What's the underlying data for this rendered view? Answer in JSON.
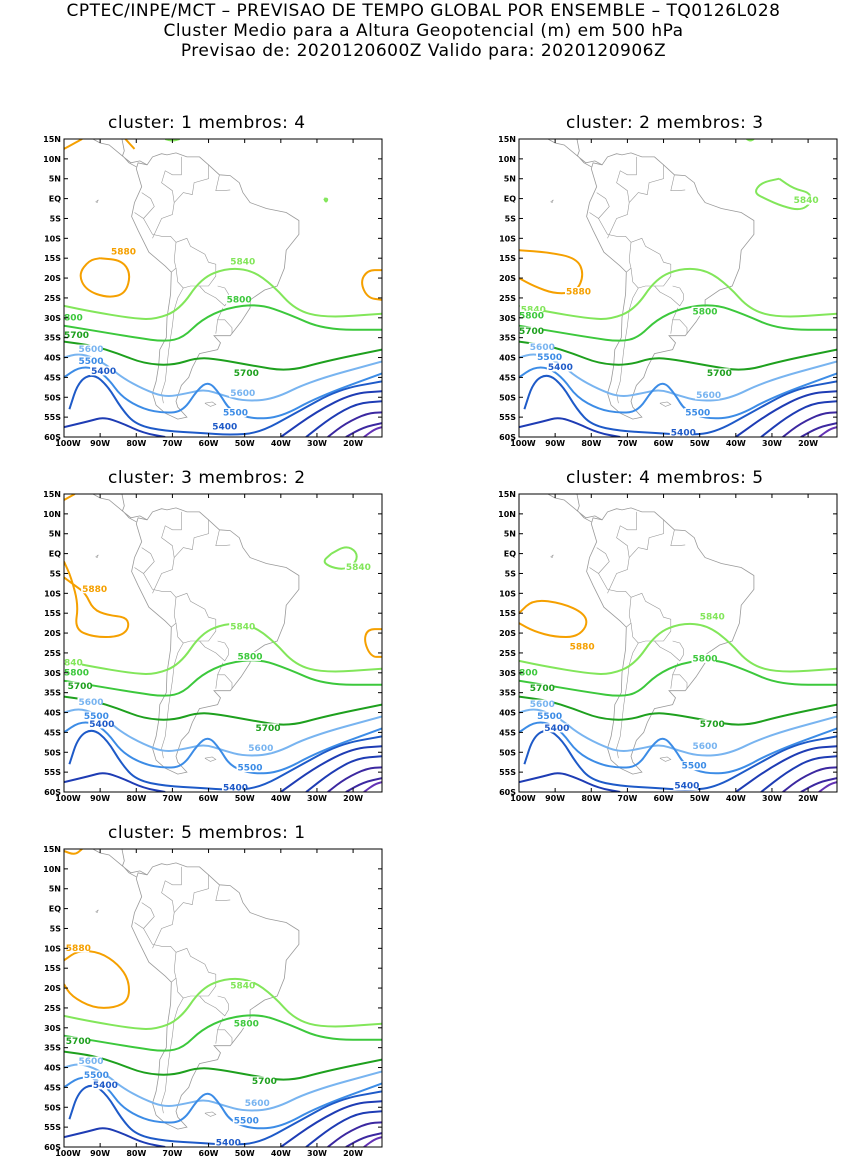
{
  "header": {
    "line1": "CPTEC/INPE/MCT – PREVISAO DE TEMPO GLOBAL POR ENSEMBLE – TQ0126L028",
    "line2": "Cluster Medio para a Altura Geopotencial (m) em 500 hPa",
    "line3": "Previsao de: 2020120600Z    Valido para: 2020120906Z"
  },
  "axes": {
    "lat_labels": [
      "15N",
      "10N",
      "5N",
      "EQ",
      "5S",
      "10S",
      "15S",
      "20S",
      "25S",
      "30S",
      "35S",
      "40S",
      "45S",
      "50S",
      "55S",
      "60S"
    ],
    "lon_labels": [
      "100W",
      "90W",
      "80W",
      "70W",
      "60W",
      "50W",
      "40W",
      "30W",
      "20W"
    ]
  },
  "colors": {
    "c5880": "#f5a000",
    "c5840": "#82e65a",
    "c5800": "#3cc83c",
    "c5700": "#1ea01e",
    "c5600": "#78b4f0",
    "c5500": "#3c8ce6",
    "c5400": "#1e5ac8",
    "c5300": "#1e3cb4",
    "c5200": "#3c28a0",
    "c5100": "#6432b4",
    "land": "#9a9a9a"
  },
  "panels": [
    {
      "title": "cluster: 1   membros: 4",
      "labels": {
        "l5880": "5880",
        "l5840": "5840",
        "l5800": "5800",
        "l5800b": "800",
        "l5700": "5700",
        "l5700b": "5700",
        "l5600": "5600",
        "l5600b": "5600",
        "l5500": "5500",
        "l5500b": "5500",
        "l5400": "5400",
        "l5400b": "5400"
      }
    },
    {
      "title": "cluster: 2   membros: 3",
      "labels": {
        "l5880": "5880",
        "l5840": "5840",
        "l5840b": "5840",
        "l5800": "5800",
        "l5800b": "5800",
        "l5700": "5700",
        "l5700b": "5700",
        "l5600": "5600",
        "l5600b": "5600",
        "l5500": "5500",
        "l5500b": "5500",
        "l5400": "5400",
        "l5400b": "5400"
      }
    },
    {
      "title": "cluster: 3   membros: 2",
      "labels": {
        "l5880": "5880",
        "l5840": "5840",
        "l5840b": "5840",
        "l5840c": "840",
        "l5800": "5800",
        "l5800b": "5800",
        "l5700": "5700",
        "l5700b": "5700",
        "l5600": "5600",
        "l5600b": "5600",
        "l5500": "5500",
        "l5500b": "5500",
        "l5400": "5400",
        "l5400b": "5400"
      }
    },
    {
      "title": "cluster: 4   membros: 5",
      "labels": {
        "l5880": "5880",
        "l5840": "5840",
        "l5800": "5800",
        "l5800b": "800",
        "l5700": "5700",
        "l5700b": "5700",
        "l5600": "5600",
        "l5600b": "5600",
        "l5500": "5500",
        "l5500b": "5500",
        "l5400": "5400",
        "l5400b": "5400"
      }
    },
    {
      "title": "cluster: 5   membros: 1",
      "labels": {
        "l5880": "5880",
        "l5840": "5840",
        "l5800": "5800",
        "l5700": "5700",
        "l5700b": "5700",
        "l5600": "5600",
        "l5600b": "5600",
        "l5500": "5500",
        "l5500b": "5500",
        "l5400": "5400",
        "l5400b": "5400"
      }
    }
  ]
}
